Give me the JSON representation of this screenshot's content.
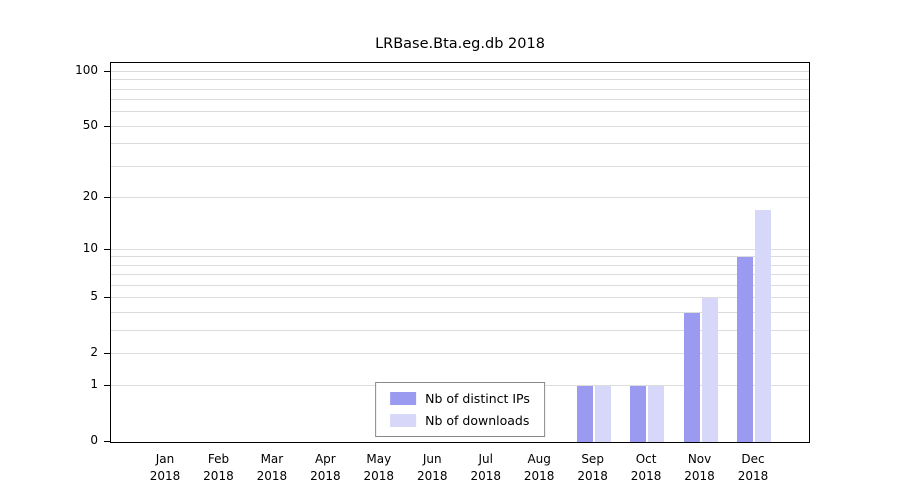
{
  "chart_data": {
    "type": "bar",
    "title": "LRBase.Bta.eg.db 2018",
    "xlabel": "",
    "ylabel": "",
    "categories": [
      "Jan",
      "Feb",
      "Mar",
      "Apr",
      "May",
      "Jun",
      "Jul",
      "Aug",
      "Sep",
      "Oct",
      "Nov",
      "Dec"
    ],
    "x_year": "2018",
    "series": [
      {
        "name": "Nb of distinct IPs",
        "color": "#9a9af0",
        "values": [
          0,
          0,
          0,
          0,
          0,
          0,
          0,
          0,
          1,
          1,
          4,
          9
        ]
      },
      {
        "name": "Nb of downloads",
        "color": "#d7d7f9",
        "values": [
          0,
          0,
          0,
          0,
          0,
          0,
          0,
          0,
          1,
          1,
          5,
          17
        ]
      }
    ],
    "yticks": [
      0,
      1,
      2,
      5,
      10,
      20,
      50,
      100
    ],
    "gridline_values": [
      1,
      2,
      3,
      4,
      5,
      6,
      7,
      8,
      9,
      10,
      20,
      30,
      40,
      50,
      60,
      70,
      80,
      90,
      100
    ],
    "scale": "log1p",
    "y_top_value": 112,
    "ylim": [
      0,
      112
    ],
    "legend_position": "inside-bottom-center",
    "grid_color": "#dcdcdc",
    "axis_color": "#000000"
  }
}
